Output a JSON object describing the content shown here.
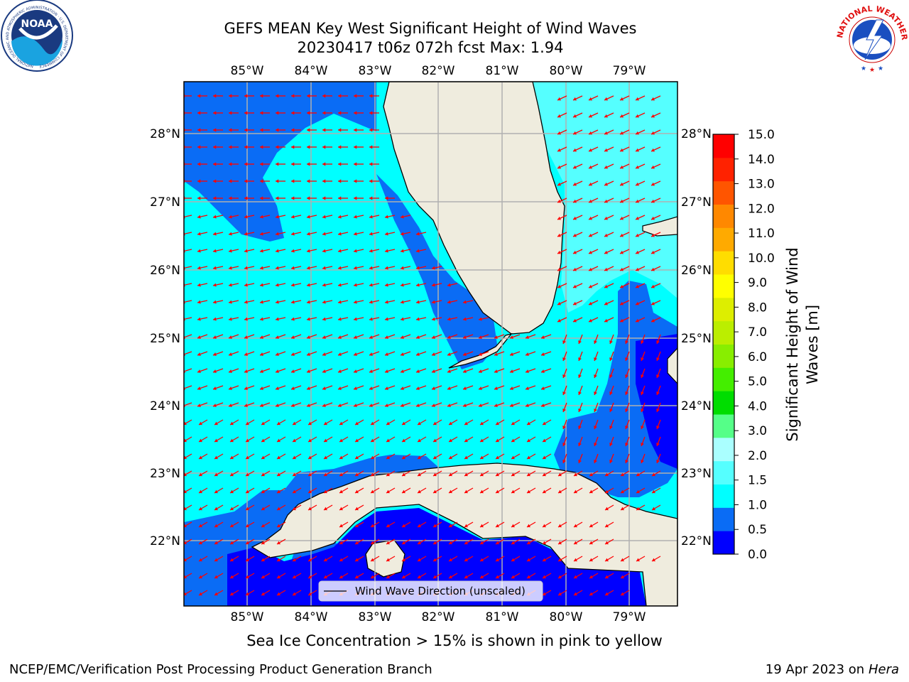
{
  "title_line1": "GEFS MEAN Key West Significant Height of Wind Waves",
  "title_line2": "20230417 t06z 072h fcst   Max: 1.94",
  "lon_labels": [
    "85°W",
    "84°W",
    "83°W",
    "82°W",
    "81°W",
    "80°W",
    "79°W"
  ],
  "lat_labels": [
    "28°N",
    "27°N",
    "26°N",
    "25°N",
    "24°N",
    "23°N",
    "22°N"
  ],
  "colorbar": {
    "title_line1": "Significant Height of Wind",
    "title_line2": "Waves [m]",
    "ticks": [
      "0.0",
      "0.5",
      "1.0",
      "1.5",
      "2.0",
      "3.0",
      "4.0",
      "5.0",
      "6.0",
      "7.0",
      "8.0",
      "9.0",
      "10.0",
      "11.0",
      "12.0",
      "13.0",
      "14.0",
      "15.0"
    ],
    "colors": [
      "#0000ff",
      "#0a6cf5",
      "#00ffff",
      "#55ffff",
      "#aaffff",
      "#55ff88",
      "#00dd00",
      "#44ee00",
      "#88ee00",
      "#bbee00",
      "#ddee00",
      "#ffff00",
      "#ffdd00",
      "#ffaa00",
      "#ff8800",
      "#ff5500",
      "#ff2200",
      "#ff0000"
    ]
  },
  "legend_label": "Wind Wave Direction (unscaled)",
  "sea_ice_note": "Sea Ice Concentration > 15% is shown in pink to yellow",
  "footer_left": "NCEP/EMC/Verification Post Processing Product Generation Branch",
  "footer_right_date": "19 Apr 2023 on ",
  "footer_right_host": "Hera",
  "logos": {
    "noaa_text": "NOAA",
    "noaa_ring": "NATIONAL OCEANIC AND ATMOSPHERIC ADMINISTRATION · U.S. DEPARTMENT OF COMMERCE",
    "nws_ring": "NATIONAL WEATHER SERVICE"
  },
  "colors": {
    "land": "#efecde",
    "arrow": "#ff0000",
    "grid": "#b0b0b0"
  },
  "map_data": {
    "lon_range": [
      -86,
      -78.4
    ],
    "lat_range": [
      21.1,
      28.8
    ],
    "arrow_direction": "toward west/south-west"
  }
}
